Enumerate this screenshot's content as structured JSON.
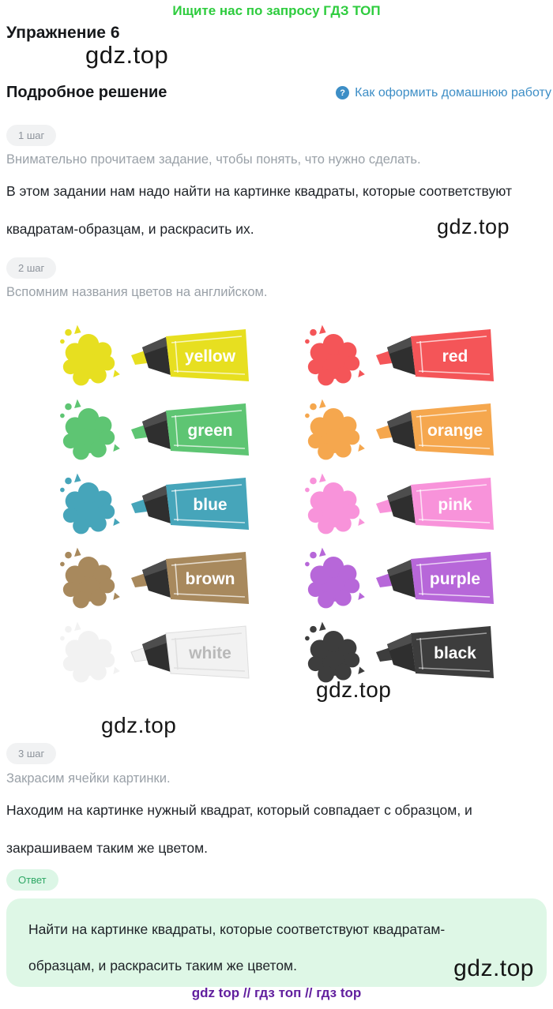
{
  "page": {
    "banner": "Ищите нас по запросу ГДЗ ТОП",
    "exercise_title": "Упражнение 6",
    "section_title": "Подробное решение",
    "help_icon": "?",
    "help_link": "Как оформить домашнюю работу",
    "watermark": "gdz.top",
    "footer": "gdz top  //  гдз топ  //  гдз top",
    "accent_green": "#2ecc3e",
    "link_blue": "#3d8ec6",
    "footer_purple": "#611f9e"
  },
  "steps": {
    "step1": {
      "badge": "1 шаг",
      "hint": "Внимательно прочитаем задание, чтобы понять, что нужно сделать.",
      "text": "В этом задании нам надо найти на картинке квадраты, которые соответствуют квадратам-образцам, и раскрасить их."
    },
    "step2": {
      "badge": "2 шаг",
      "hint": "Вспомним названия цветов на английском."
    },
    "step3": {
      "badge": "3 шаг",
      "hint": "Закрасим ячейки картинки.",
      "text": "Находим на картинке нужный квадрат, который совпадает с образцом, и закрашиваем таким же цветом."
    }
  },
  "colors_grid": [
    {
      "label": "yellow",
      "hex": "#e7df20"
    },
    {
      "label": "red",
      "hex": "#f45558"
    },
    {
      "label": "green",
      "hex": "#5ec573"
    },
    {
      "label": "orange",
      "hex": "#f5a74e"
    },
    {
      "label": "blue",
      "hex": "#46a5ba"
    },
    {
      "label": "pink",
      "hex": "#f893da"
    },
    {
      "label": "brown",
      "hex": "#a8895d"
    },
    {
      "label": "purple",
      "hex": "#b767d9"
    },
    {
      "label": "white",
      "hex": "#f2f2f2",
      "text_color": "#b9b9b9",
      "line_color": "#e0e0e0",
      "outline": "#dedede"
    },
    {
      "label": "black",
      "hex": "#3d3d3d",
      "line_color": "rgba(255,255,255,0.5)"
    }
  ],
  "answer": {
    "badge": "Ответ",
    "text": "Найти на картинке квадраты, которые соответствуют квадратам-образцам, и раскрасить таким же цветом."
  }
}
